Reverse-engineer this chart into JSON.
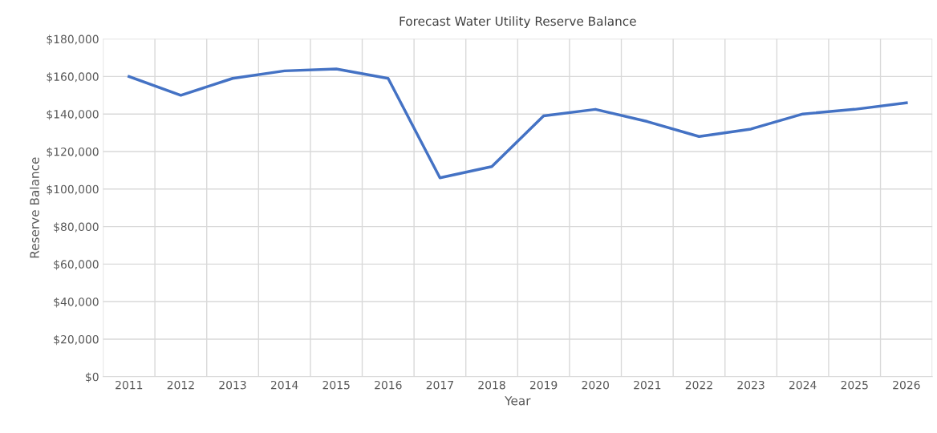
{
  "chart_data": {
    "type": "line",
    "title": "Forecast Water Utility Reserve Balance",
    "xlabel": "Year",
    "ylabel": "Reserve Balance",
    "categories": [
      "2011",
      "2012",
      "2013",
      "2014",
      "2015",
      "2016",
      "2017",
      "2018",
      "2019",
      "2020",
      "2021",
      "2022",
      "2023",
      "2024",
      "2025",
      "2026"
    ],
    "series": [
      {
        "color": "#4472c4",
        "values": [
          160000,
          150000,
          159000,
          163000,
          164000,
          159000,
          106000,
          112000,
          139000,
          142500,
          136000,
          128000,
          132000,
          140000,
          142500,
          146000
        ]
      }
    ],
    "ylim": [
      0,
      180000
    ],
    "yticks": [
      {
        "value": 0,
        "label": "$0"
      },
      {
        "value": 20000,
        "label": "$20,000"
      },
      {
        "value": 40000,
        "label": "$40,000"
      },
      {
        "value": 60000,
        "label": "$60,000"
      },
      {
        "value": 80000,
        "label": "$80,000"
      },
      {
        "value": 100000,
        "label": "$100,000"
      },
      {
        "value": 120000,
        "label": "$120,000"
      },
      {
        "value": 140000,
        "label": "$140,000"
      },
      {
        "value": 160000,
        "label": "$160,000"
      },
      {
        "value": 180000,
        "label": "$180,000"
      }
    ],
    "grid": true,
    "marker": "none",
    "line_style": "solid"
  }
}
